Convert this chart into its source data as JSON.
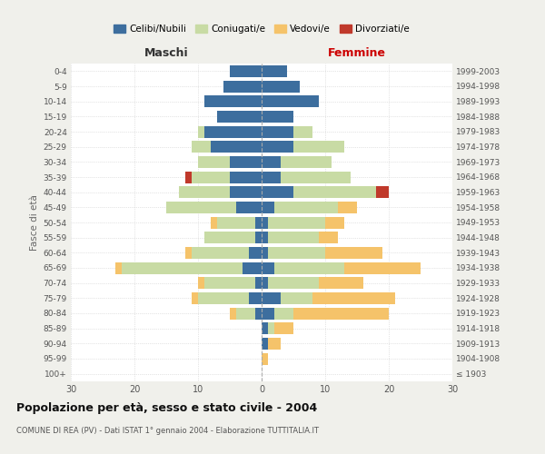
{
  "age_groups": [
    "100+",
    "95-99",
    "90-94",
    "85-89",
    "80-84",
    "75-79",
    "70-74",
    "65-69",
    "60-64",
    "55-59",
    "50-54",
    "45-49",
    "40-44",
    "35-39",
    "30-34",
    "25-29",
    "20-24",
    "15-19",
    "10-14",
    "5-9",
    "0-4"
  ],
  "birth_years": [
    "≤ 1903",
    "1904-1908",
    "1909-1913",
    "1914-1918",
    "1919-1923",
    "1924-1928",
    "1929-1933",
    "1934-1938",
    "1939-1943",
    "1944-1948",
    "1949-1953",
    "1954-1958",
    "1959-1963",
    "1964-1968",
    "1969-1973",
    "1974-1978",
    "1979-1983",
    "1984-1988",
    "1989-1993",
    "1994-1998",
    "1999-2003"
  ],
  "maschi": {
    "celibi": [
      0,
      0,
      0,
      0,
      1,
      2,
      1,
      3,
      2,
      1,
      1,
      4,
      5,
      5,
      5,
      8,
      9,
      7,
      9,
      6,
      5
    ],
    "coniugati": [
      0,
      0,
      0,
      0,
      3,
      8,
      8,
      19,
      9,
      8,
      6,
      11,
      8,
      6,
      5,
      3,
      1,
      0,
      0,
      0,
      0
    ],
    "vedovi": [
      0,
      0,
      0,
      0,
      1,
      1,
      1,
      1,
      1,
      0,
      1,
      0,
      0,
      0,
      0,
      0,
      0,
      0,
      0,
      0,
      0
    ],
    "divorziati": [
      0,
      0,
      0,
      0,
      0,
      0,
      0,
      0,
      0,
      0,
      0,
      0,
      0,
      1,
      0,
      0,
      0,
      0,
      0,
      0,
      0
    ]
  },
  "femmine": {
    "nubili": [
      0,
      0,
      1,
      1,
      2,
      3,
      1,
      2,
      1,
      1,
      1,
      2,
      5,
      3,
      3,
      5,
      5,
      5,
      9,
      6,
      4
    ],
    "coniugate": [
      0,
      0,
      0,
      1,
      3,
      5,
      8,
      11,
      9,
      8,
      9,
      10,
      13,
      11,
      8,
      8,
      3,
      0,
      0,
      0,
      0
    ],
    "vedove": [
      0,
      1,
      2,
      3,
      15,
      13,
      7,
      12,
      9,
      3,
      3,
      3,
      0,
      0,
      0,
      0,
      0,
      0,
      0,
      0,
      0
    ],
    "divorziate": [
      0,
      0,
      0,
      0,
      0,
      0,
      0,
      0,
      0,
      0,
      0,
      0,
      2,
      0,
      0,
      0,
      0,
      0,
      0,
      0,
      0
    ]
  },
  "colors": {
    "celibi": "#3d6e9e",
    "coniugati": "#c8dba4",
    "vedovi": "#f5c36a",
    "divorziati": "#c0392b"
  },
  "xlim": 30,
  "title": "Popolazione per età, sesso e stato civile - 2004",
  "subtitle": "COMUNE DI REA (PV) - Dati ISTAT 1° gennaio 2004 - Elaborazione TUTTITALIA.IT",
  "ylabel_left": "Fasce di età",
  "xlabel_maschi": "Maschi",
  "xlabel_femmine": "Femmine",
  "legend_labels": [
    "Celibi/Nubili",
    "Coniugati/e",
    "Vedovi/e",
    "Divorziati/e"
  ],
  "background_color": "#f0f0eb",
  "plot_bg": "#ffffff"
}
